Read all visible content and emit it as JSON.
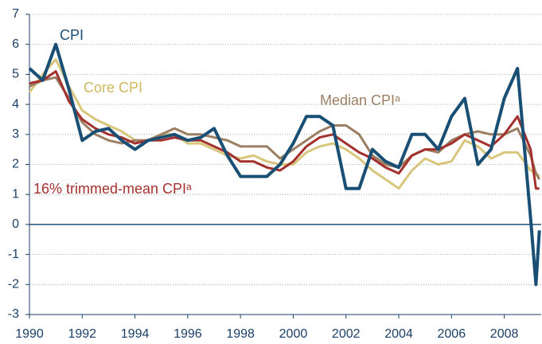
{
  "chart_data": {
    "type": "line",
    "x": [
      1990,
      1990.5,
      1991,
      1991.5,
      1992,
      1992.5,
      1993,
      1993.5,
      1994,
      1994.5,
      1995,
      1995.5,
      1996,
      1996.5,
      1997,
      1997.5,
      1998,
      1998.5,
      1999,
      1999.5,
      2000,
      2000.5,
      2001,
      2001.5,
      2002,
      2002.5,
      2003,
      2003.5,
      2004,
      2004.5,
      2005,
      2005.5,
      2006,
      2006.5,
      2007,
      2007.5,
      2008,
      2008.5,
      2009,
      2009.2,
      2009.33
    ],
    "series": [
      {
        "name": "Core CPI",
        "color": "#d8c67c",
        "values": [
          4.4,
          5.0,
          5.5,
          4.6,
          3.8,
          3.5,
          3.3,
          3.1,
          2.8,
          2.8,
          3.0,
          3.0,
          2.7,
          2.7,
          2.5,
          2.3,
          2.2,
          2.3,
          2.1,
          2.0,
          2.0,
          2.4,
          2.6,
          2.7,
          2.5,
          2.2,
          1.8,
          1.5,
          1.2,
          1.8,
          2.2,
          2.0,
          2.1,
          2.8,
          2.6,
          2.2,
          2.4,
          2.4,
          1.8,
          1.7,
          1.6
        ]
      },
      {
        "name": "Median CPIᵃ",
        "color": "#9c7f63",
        "values": [
          4.6,
          4.8,
          4.9,
          4.2,
          3.4,
          3.0,
          2.8,
          2.7,
          2.8,
          2.8,
          3.0,
          3.2,
          3.0,
          3.0,
          2.9,
          2.8,
          2.6,
          2.6,
          2.6,
          2.2,
          2.5,
          2.8,
          3.1,
          3.3,
          3.3,
          3.0,
          2.3,
          2.0,
          1.9,
          2.3,
          2.5,
          2.4,
          2.8,
          3.0,
          3.1,
          3.0,
          3.0,
          3.2,
          2.3,
          1.7,
          1.5
        ]
      },
      {
        "name": "16% trimmed-mean CPIᵃ",
        "color": "#a3302d",
        "values": [
          4.7,
          4.8,
          5.1,
          4.1,
          3.5,
          3.2,
          3.0,
          2.9,
          2.7,
          2.8,
          2.8,
          2.9,
          2.8,
          2.8,
          2.6,
          2.4,
          2.1,
          2.1,
          1.9,
          1.8,
          2.1,
          2.6,
          2.9,
          3.0,
          2.7,
          2.4,
          2.2,
          1.9,
          1.7,
          2.3,
          2.5,
          2.5,
          2.7,
          3.0,
          2.8,
          2.6,
          3.0,
          3.6,
          2.5,
          1.2,
          1.2
        ]
      },
      {
        "name": "CPI",
        "color": "#1a4f75",
        "values": [
          5.2,
          4.8,
          6.0,
          4.5,
          2.8,
          3.1,
          3.2,
          2.8,
          2.5,
          2.8,
          2.9,
          3.0,
          2.8,
          2.9,
          3.2,
          2.3,
          1.6,
          1.6,
          1.6,
          2.0,
          2.7,
          3.6,
          3.6,
          3.3,
          1.2,
          1.2,
          2.5,
          2.1,
          1.9,
          3.0,
          3.0,
          2.5,
          3.6,
          4.2,
          2.0,
          2.5,
          4.2,
          5.2,
          0.2,
          -2.0,
          -0.2
        ]
      }
    ],
    "xlim": [
      1990,
      2009.4
    ],
    "xticks": [
      1990,
      1992,
      1994,
      1996,
      1998,
      2000,
      2002,
      2004,
      2006,
      2008
    ],
    "ylim": [
      -3,
      7
    ],
    "yticks": [
      -3,
      -2,
      -1,
      0,
      1,
      2,
      3,
      4,
      5,
      6,
      7
    ],
    "grid": true
  }
}
